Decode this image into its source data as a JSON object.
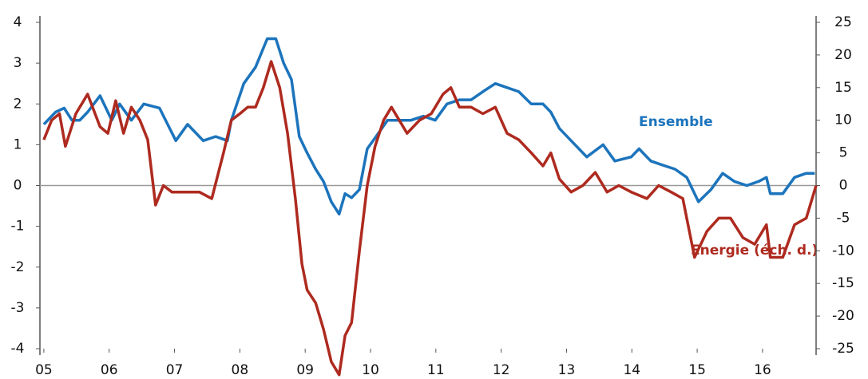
{
  "chart_data": {
    "type": "line",
    "xlim": [
      2004.94,
      2016.82
    ],
    "xticks": [
      {
        "value": 2005,
        "label": "05"
      },
      {
        "value": 2006,
        "label": "06"
      },
      {
        "value": 2007,
        "label": "07"
      },
      {
        "value": 2008,
        "label": "08"
      },
      {
        "value": 2009,
        "label": "09"
      },
      {
        "value": 2010,
        "label": "10"
      },
      {
        "value": 2011,
        "label": "11"
      },
      {
        "value": 2012,
        "label": "12"
      },
      {
        "value": 2013,
        "label": "13"
      },
      {
        "value": 2014,
        "label": "14"
      },
      {
        "value": 2015,
        "label": "15"
      },
      {
        "value": 2016,
        "label": "16"
      }
    ],
    "ylim": [
      -4,
      4
    ],
    "yticks": [
      -4,
      -3,
      -2,
      -1,
      0,
      1,
      2,
      3,
      4
    ],
    "y2lim": [
      -25,
      25
    ],
    "y2ticks": [
      -25,
      -20,
      -15,
      -10,
      -5,
      0,
      5,
      10,
      15,
      20,
      25
    ],
    "series": [
      {
        "name": "Ensemble",
        "color": "#1c74bc",
        "x": [
          2005.0,
          2005.18,
          2005.31,
          2005.43,
          2005.55,
          2005.67,
          2005.86,
          2006.04,
          2006.16,
          2006.34,
          2006.53,
          2006.77,
          2007.02,
          2007.2,
          2007.44,
          2007.63,
          2007.81,
          2007.87,
          2008.06,
          2008.24,
          2008.42,
          2008.55,
          2008.67,
          2008.79,
          2008.91,
          2009.03,
          2009.16,
          2009.28,
          2009.4,
          2009.52,
          2009.61,
          2009.71,
          2009.83,
          2009.95,
          2010.13,
          2010.26,
          2010.44,
          2010.62,
          2010.81,
          2010.99,
          2011.17,
          2011.36,
          2011.54,
          2011.72,
          2011.91,
          2012.09,
          2012.27,
          2012.46,
          2012.64,
          2012.76,
          2012.89,
          2013.07,
          2013.31,
          2013.56,
          2013.74,
          2013.99,
          2014.11,
          2014.29,
          2014.47,
          2014.66,
          2014.84,
          2015.02,
          2015.21,
          2015.39,
          2015.57,
          2015.76,
          2015.94,
          2016.06,
          2016.12,
          2016.31,
          2016.49,
          2016.67,
          2016.8
        ],
        "values": [
          1.5,
          1.8,
          1.9,
          1.6,
          1.6,
          1.8,
          2.2,
          1.6,
          2.0,
          1.6,
          2.0,
          1.9,
          1.1,
          1.5,
          1.1,
          1.2,
          1.1,
          1.6,
          2.5,
          2.9,
          3.6,
          3.6,
          3.0,
          2.6,
          1.2,
          0.8,
          0.4,
          0.1,
          -0.4,
          -0.7,
          -0.2,
          -0.3,
          -0.1,
          0.9,
          1.3,
          1.6,
          1.6,
          1.6,
          1.7,
          1.6,
          2.0,
          2.1,
          2.1,
          2.3,
          2.5,
          2.4,
          2.3,
          2.0,
          2.0,
          1.8,
          1.4,
          1.1,
          0.7,
          1.0,
          0.6,
          0.7,
          0.9,
          0.6,
          0.5,
          0.4,
          0.2,
          -0.4,
          -0.1,
          0.3,
          0.1,
          0.0,
          0.1,
          0.2,
          -0.2,
          -0.2,
          0.2,
          0.3,
          0.3
        ]
      },
      {
        "name": "Energie (éch. d.)",
        "color": "#ae2a1f",
        "axis": "y2",
        "x": [
          2005.0,
          2005.12,
          2005.24,
          2005.33,
          2005.49,
          2005.67,
          2005.86,
          2005.98,
          2006.1,
          2006.22,
          2006.34,
          2006.47,
          2006.59,
          2006.71,
          2006.83,
          2006.96,
          2007.08,
          2007.2,
          2007.38,
          2007.57,
          2007.75,
          2007.87,
          2008.0,
          2008.12,
          2008.24,
          2008.36,
          2008.48,
          2008.61,
          2008.73,
          2008.85,
          2008.95,
          2009.03,
          2009.16,
          2009.28,
          2009.4,
          2009.52,
          2009.61,
          2009.71,
          2009.83,
          2009.95,
          2010.07,
          2010.2,
          2010.32,
          2010.44,
          2010.56,
          2010.75,
          2010.93,
          2011.11,
          2011.23,
          2011.36,
          2011.54,
          2011.72,
          2011.91,
          2012.09,
          2012.27,
          2012.46,
          2012.64,
          2012.76,
          2012.89,
          2013.07,
          2013.25,
          2013.44,
          2013.62,
          2013.8,
          2013.99,
          2014.23,
          2014.41,
          2014.6,
          2014.78,
          2014.96,
          2015.15,
          2015.33,
          2015.51,
          2015.7,
          2015.88,
          2016.06,
          2016.12,
          2016.31,
          2016.49,
          2016.67,
          2016.82
        ],
        "values": [
          7,
          10,
          11,
          6,
          11,
          14,
          9,
          8,
          13,
          8,
          12,
          10,
          7,
          -3,
          0,
          -1,
          -1,
          -1,
          -1,
          -2,
          5,
          10,
          11,
          12,
          12,
          15,
          19,
          15,
          8,
          -2,
          -12,
          -16,
          -18,
          -22,
          -27,
          -29,
          -23,
          -21,
          -10,
          0,
          6,
          10,
          12,
          10,
          8,
          10,
          11,
          14,
          15,
          12,
          12,
          11,
          12,
          8,
          7,
          5,
          3,
          5,
          1,
          -1,
          0,
          2,
          -1,
          0,
          -1,
          -2,
          0,
          -1,
          -2,
          -11,
          -7,
          -5,
          -5,
          -8,
          -9,
          -6,
          -11,
          -11,
          -6,
          -5,
          0
        ]
      }
    ]
  }
}
